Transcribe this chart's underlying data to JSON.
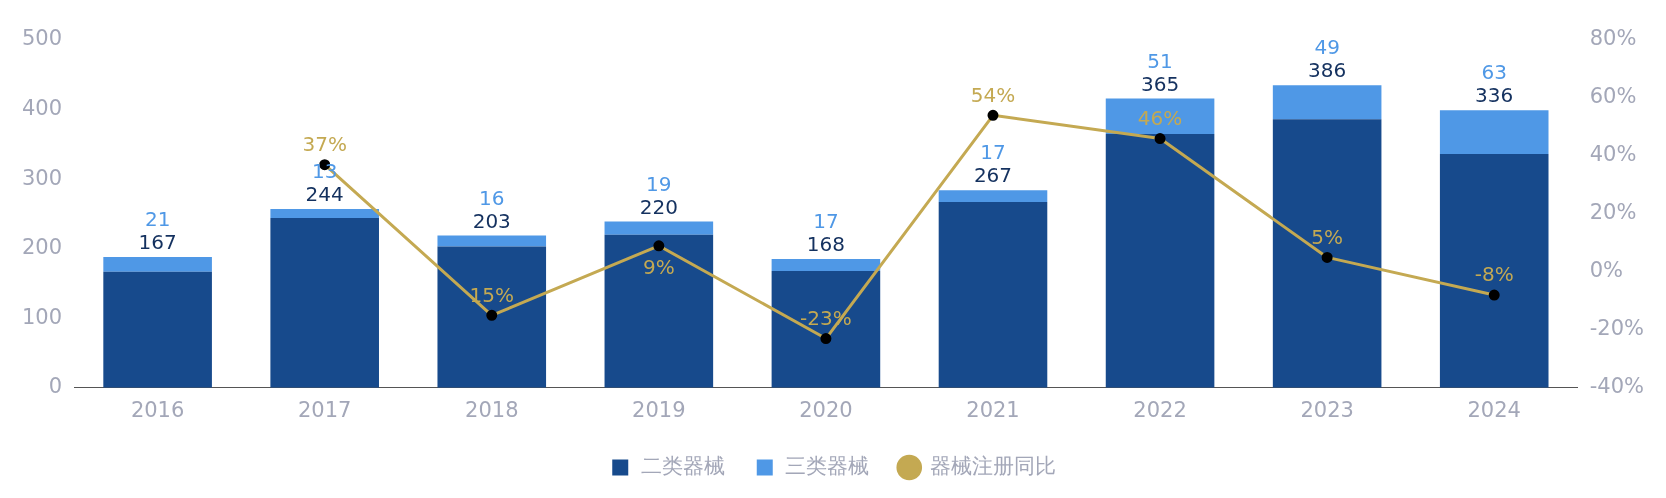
{
  "chart_data": {
    "type": "bar",
    "stacked": true,
    "categories": [
      "2016",
      "2017",
      "2018",
      "2019",
      "2020",
      "2021",
      "2022",
      "2023",
      "2024"
    ],
    "series": [
      {
        "name": "二类器械",
        "color": "#174a8c",
        "values": [
          167,
          244,
          203,
          220,
          168,
          267,
          365,
          386,
          336
        ],
        "value_labels": [
          "167",
          "244",
          "203",
          "220",
          "168",
          "267",
          "365",
          "386",
          "336"
        ]
      },
      {
        "name": "三类器械",
        "color": "#4f98e6",
        "values": [
          21,
          13,
          16,
          19,
          17,
          17,
          51,
          49,
          63
        ],
        "value_labels": [
          "21",
          "13",
          "16",
          "19",
          "17",
          "17",
          "51",
          "49",
          "63"
        ]
      },
      {
        "name": "器械注册同比",
        "type": "line",
        "axis": "y2",
        "color": "#c4a952",
        "marker": "circle",
        "values": [
          null,
          37,
          -15,
          9,
          -23,
          54,
          46,
          5,
          -8
        ],
        "value_labels": [
          null,
          "37%",
          null,
          "9%",
          "-23%",
          "54%",
          "46%",
          "5%",
          "-8%"
        ]
      }
    ],
    "annotations": [
      "15%"
    ],
    "ylim": [
      0,
      500
    ],
    "yticks": [
      0,
      100,
      200,
      300,
      400,
      500
    ],
    "y2lim": [
      -40,
      80
    ],
    "y2ticks": [
      {
        "value": -40,
        "label": "-40%"
      },
      {
        "value": -20,
        "label": "-20%"
      },
      {
        "value": 0,
        "label": "0%"
      },
      {
        "value": 20,
        "label": "20%"
      },
      {
        "value": 40,
        "label": "40%"
      },
      {
        "value": 60,
        "label": "60%"
      },
      {
        "value": 80,
        "label": "80%"
      }
    ],
    "grid": false,
    "legend": "bottom"
  }
}
